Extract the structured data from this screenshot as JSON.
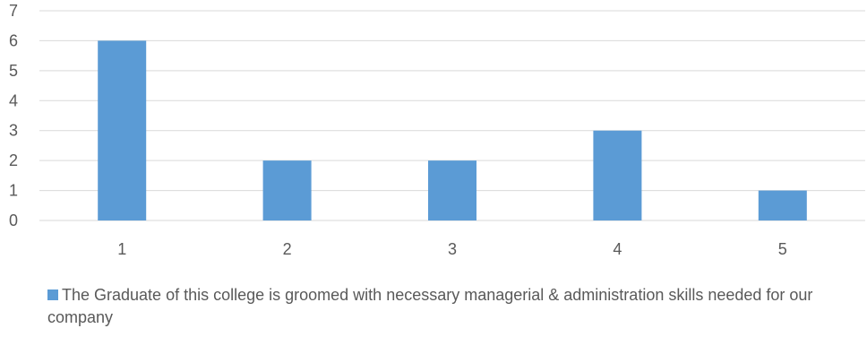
{
  "chart_data": {
    "type": "bar",
    "categories": [
      "1",
      "2",
      "3",
      "4",
      "5"
    ],
    "series": [
      {
        "name": "The Graduate of this  college is groomed with necessary managerial & administration skills needed for our company",
        "values": [
          6,
          2,
          2,
          3,
          1
        ],
        "color": "#5b9bd5"
      }
    ],
    "yticks": [
      "0",
      "1",
      "2",
      "3",
      "4",
      "5",
      "6",
      "7"
    ],
    "ylim": [
      0,
      7
    ],
    "grid": true,
    "legend": "bottom",
    "colors": {
      "bar": "#5b9bd5",
      "grid": "#d9d9d9",
      "text": "#595959"
    }
  }
}
